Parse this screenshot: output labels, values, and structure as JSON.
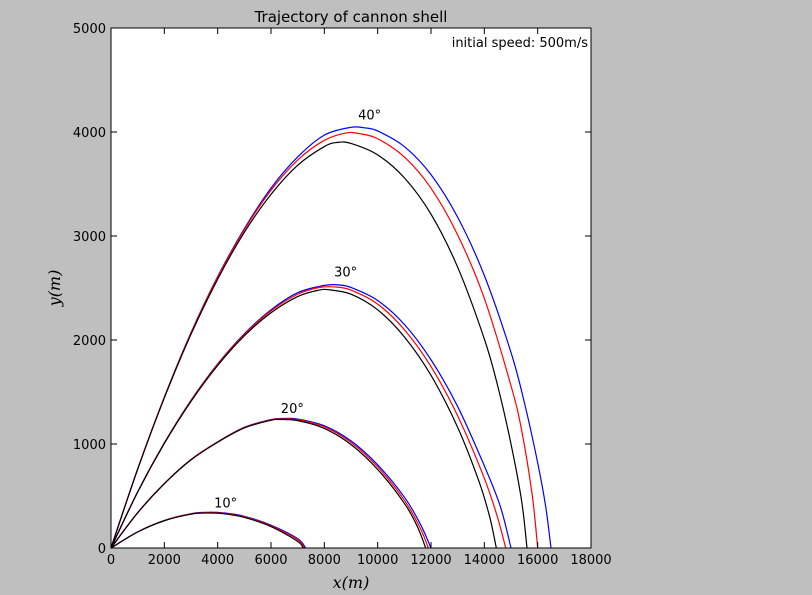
{
  "chart_data": {
    "type": "line",
    "title": "Trajectory of cannon shell",
    "annotation": "initial speed: 500m/s",
    "xlabel": "x(m)",
    "ylabel": "y(m)",
    "xlim": [
      0,
      18000
    ],
    "ylim": [
      0,
      5000
    ],
    "xticks": [
      0,
      2000,
      4000,
      6000,
      8000,
      10000,
      12000,
      14000,
      16000,
      18000
    ],
    "yticks": [
      0,
      1000,
      2000,
      3000,
      4000,
      5000
    ],
    "grid": false,
    "colors": {
      "blue": "#0000ff",
      "red": "#ff0000",
      "black": "#000000"
    },
    "angle_labels": [
      {
        "text": "10°",
        "x": 4300,
        "y": 390
      },
      {
        "text": "20°",
        "x": 6800,
        "y": 1300
      },
      {
        "text": "30°",
        "x": 8800,
        "y": 2610
      },
      {
        "text": "40°",
        "x": 9700,
        "y": 4120
      }
    ],
    "series": [
      {
        "angle": 10,
        "color": "blue",
        "points": [
          [
            0,
            0
          ],
          [
            1000,
            155
          ],
          [
            2000,
            265
          ],
          [
            3000,
            330
          ],
          [
            3600,
            343
          ],
          [
            4200,
            338
          ],
          [
            5000,
            305
          ],
          [
            6000,
            220
          ],
          [
            7000,
            90
          ],
          [
            7300,
            0
          ]
        ]
      },
      {
        "angle": 10,
        "color": "red",
        "points": [
          [
            0,
            0
          ],
          [
            1000,
            155
          ],
          [
            2000,
            264
          ],
          [
            3000,
            328
          ],
          [
            3600,
            340
          ],
          [
            4200,
            334
          ],
          [
            5000,
            300
          ],
          [
            6000,
            214
          ],
          [
            7000,
            80
          ],
          [
            7250,
            0
          ]
        ]
      },
      {
        "angle": 10,
        "color": "black",
        "points": [
          [
            0,
            0
          ],
          [
            1000,
            154
          ],
          [
            2000,
            262
          ],
          [
            3000,
            325
          ],
          [
            3600,
            336
          ],
          [
            4200,
            330
          ],
          [
            5000,
            294
          ],
          [
            6000,
            206
          ],
          [
            7000,
            64
          ],
          [
            7200,
            0
          ]
        ]
      },
      {
        "angle": 20,
        "color": "blue",
        "points": [
          [
            0,
            0
          ],
          [
            1000,
            340
          ],
          [
            2000,
            620
          ],
          [
            3000,
            850
          ],
          [
            4000,
            1020
          ],
          [
            5000,
            1160
          ],
          [
            6000,
            1235
          ],
          [
            6500,
            1245
          ],
          [
            7000,
            1240
          ],
          [
            8000,
            1175
          ],
          [
            9000,
            1030
          ],
          [
            10000,
            800
          ],
          [
            11000,
            490
          ],
          [
            11600,
            230
          ],
          [
            12000,
            0
          ]
        ]
      },
      {
        "angle": 20,
        "color": "red",
        "points": [
          [
            0,
            0
          ],
          [
            1000,
            340
          ],
          [
            2000,
            620
          ],
          [
            3000,
            850
          ],
          [
            4000,
            1020
          ],
          [
            5000,
            1158
          ],
          [
            6000,
            1232
          ],
          [
            6400,
            1240
          ],
          [
            7000,
            1234
          ],
          [
            8000,
            1165
          ],
          [
            9000,
            1015
          ],
          [
            10000,
            780
          ],
          [
            11000,
            460
          ],
          [
            11600,
            190
          ],
          [
            11900,
            0
          ]
        ]
      },
      {
        "angle": 20,
        "color": "black",
        "points": [
          [
            0,
            0
          ],
          [
            1000,
            338
          ],
          [
            2000,
            618
          ],
          [
            3000,
            847
          ],
          [
            4000,
            1017
          ],
          [
            5000,
            1154
          ],
          [
            6000,
            1228
          ],
          [
            6300,
            1235
          ],
          [
            7000,
            1225
          ],
          [
            8000,
            1150
          ],
          [
            9000,
            995
          ],
          [
            10000,
            755
          ],
          [
            11000,
            430
          ],
          [
            11500,
            200
          ],
          [
            11800,
            0
          ]
        ]
      },
      {
        "angle": 30,
        "color": "blue",
        "points": [
          [
            0,
            0
          ],
          [
            1000,
            540
          ],
          [
            2000,
            1010
          ],
          [
            3000,
            1420
          ],
          [
            4000,
            1770
          ],
          [
            5000,
            2060
          ],
          [
            6000,
            2290
          ],
          [
            7000,
            2455
          ],
          [
            8000,
            2525
          ],
          [
            8500,
            2530
          ],
          [
            9000,
            2505
          ],
          [
            10000,
            2380
          ],
          [
            11000,
            2150
          ],
          [
            12000,
            1810
          ],
          [
            13000,
            1360
          ],
          [
            14000,
            790
          ],
          [
            14600,
            400
          ],
          [
            15000,
            0
          ]
        ]
      },
      {
        "angle": 30,
        "color": "red",
        "points": [
          [
            0,
            0
          ],
          [
            1000,
            540
          ],
          [
            2000,
            1010
          ],
          [
            3000,
            1418
          ],
          [
            4000,
            1766
          ],
          [
            5000,
            2053
          ],
          [
            6000,
            2280
          ],
          [
            7000,
            2440
          ],
          [
            7800,
            2505
          ],
          [
            8400,
            2510
          ],
          [
            9000,
            2480
          ],
          [
            10000,
            2345
          ],
          [
            11000,
            2100
          ],
          [
            12000,
            1745
          ],
          [
            13000,
            1270
          ],
          [
            14000,
            670
          ],
          [
            14500,
            290
          ],
          [
            14800,
            0
          ]
        ]
      },
      {
        "angle": 30,
        "color": "black",
        "points": [
          [
            0,
            0
          ],
          [
            1000,
            538
          ],
          [
            2000,
            1005
          ],
          [
            3000,
            1410
          ],
          [
            4000,
            1755
          ],
          [
            5000,
            2040
          ],
          [
            6000,
            2262
          ],
          [
            7000,
            2418
          ],
          [
            7800,
            2480
          ],
          [
            8200,
            2482
          ],
          [
            9000,
            2440
          ],
          [
            10000,
            2290
          ],
          [
            11000,
            2030
          ],
          [
            12000,
            1660
          ],
          [
            13000,
            1160
          ],
          [
            13800,
            640
          ],
          [
            14200,
            300
          ],
          [
            14450,
            0
          ]
        ]
      },
      {
        "angle": 40,
        "color": "blue",
        "points": [
          [
            0,
            0
          ],
          [
            1000,
            760
          ],
          [
            2000,
            1450
          ],
          [
            3000,
            2070
          ],
          [
            4000,
            2610
          ],
          [
            5000,
            3070
          ],
          [
            6000,
            3460
          ],
          [
            7000,
            3760
          ],
          [
            8000,
            3970
          ],
          [
            9000,
            4045
          ],
          [
            9500,
            4040
          ],
          [
            10000,
            4010
          ],
          [
            11000,
            3860
          ],
          [
            12000,
            3590
          ],
          [
            13000,
            3180
          ],
          [
            14000,
            2620
          ],
          [
            15000,
            1880
          ],
          [
            15500,
            1400
          ],
          [
            16000,
            820
          ],
          [
            16300,
            400
          ],
          [
            16500,
            0
          ]
        ]
      },
      {
        "angle": 40,
        "color": "red",
        "points": [
          [
            0,
            0
          ],
          [
            1000,
            760
          ],
          [
            2000,
            1450
          ],
          [
            3000,
            2068
          ],
          [
            4000,
            2605
          ],
          [
            5000,
            3060
          ],
          [
            6000,
            3440
          ],
          [
            7000,
            3730
          ],
          [
            8000,
            3920
          ],
          [
            8800,
            3990
          ],
          [
            9300,
            3985
          ],
          [
            10000,
            3935
          ],
          [
            11000,
            3760
          ],
          [
            12000,
            3460
          ],
          [
            13000,
            3010
          ],
          [
            14000,
            2400
          ],
          [
            15000,
            1560
          ],
          [
            15400,
            1130
          ],
          [
            15800,
            500
          ],
          [
            16000,
            0
          ]
        ]
      },
      {
        "angle": 40,
        "color": "black",
        "points": [
          [
            0,
            0
          ],
          [
            1000,
            757
          ],
          [
            2000,
            1443
          ],
          [
            3000,
            2055
          ],
          [
            4000,
            2585
          ],
          [
            5000,
            3035
          ],
          [
            6000,
            3400
          ],
          [
            7000,
            3680
          ],
          [
            8000,
            3860
          ],
          [
            8500,
            3900
          ],
          [
            9000,
            3890
          ],
          [
            10000,
            3780
          ],
          [
            11000,
            3560
          ],
          [
            12000,
            3210
          ],
          [
            13000,
            2700
          ],
          [
            14000,
            2010
          ],
          [
            14500,
            1560
          ],
          [
            15000,
            1000
          ],
          [
            15400,
            450
          ],
          [
            15600,
            0
          ]
        ]
      }
    ]
  }
}
